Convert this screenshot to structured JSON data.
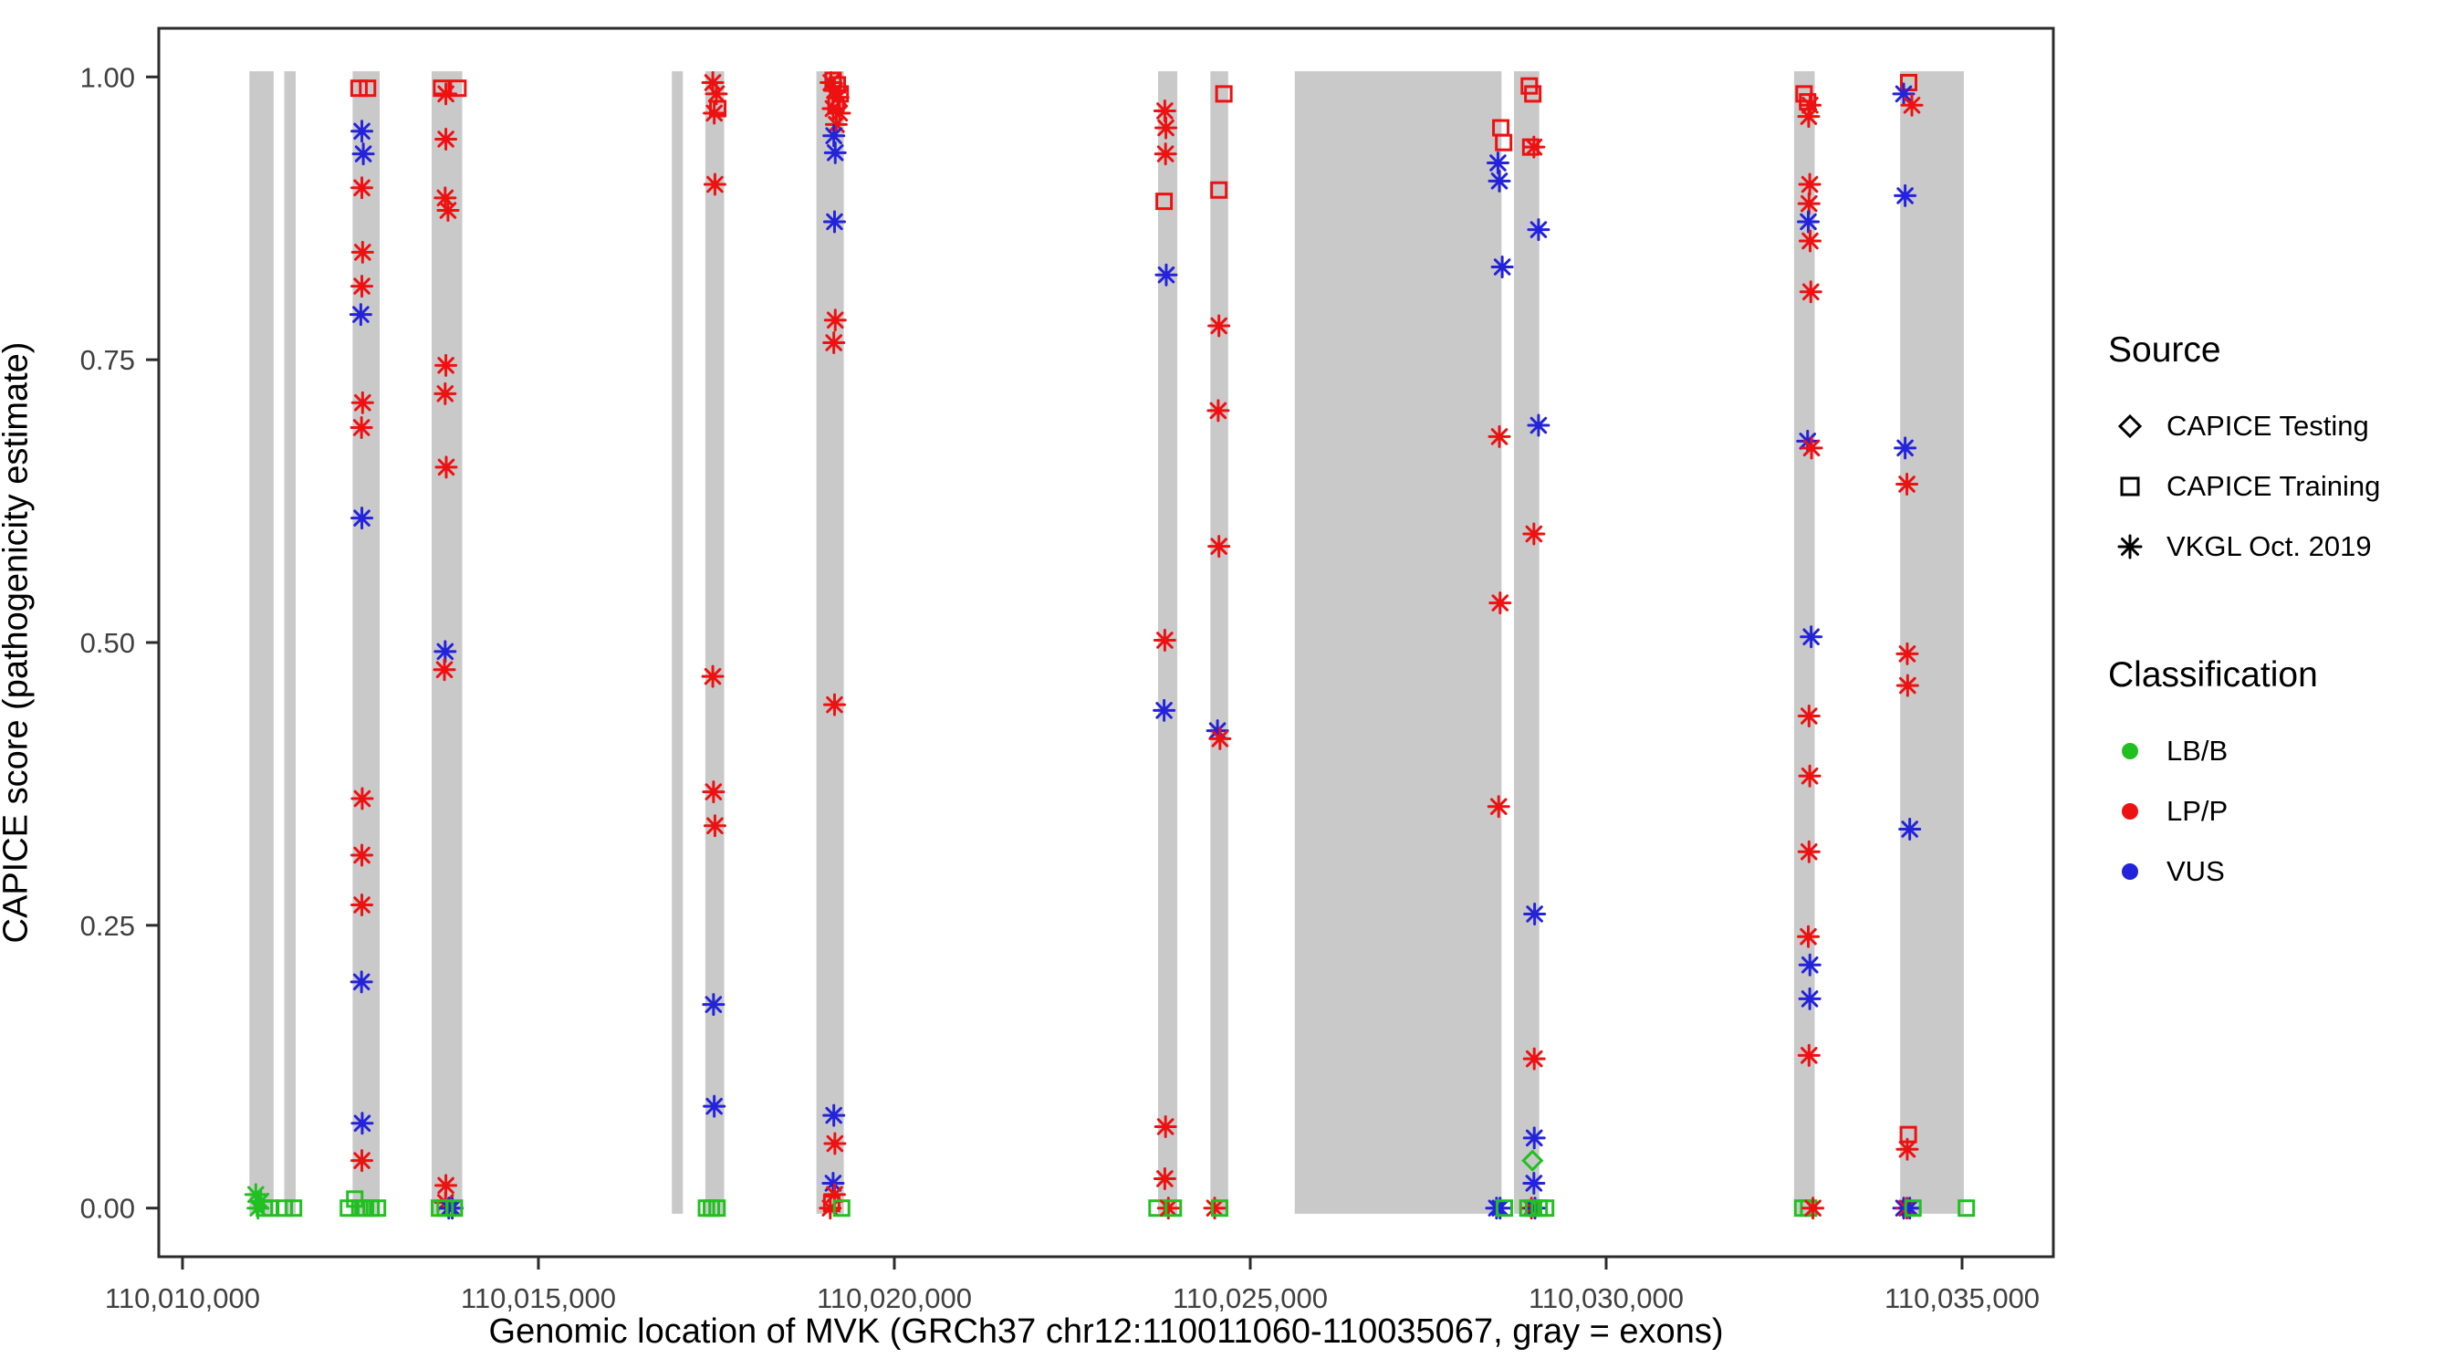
{
  "legend": {
    "source_title": "Source",
    "source_items": [
      {
        "label": "CAPICE Testing",
        "marker": "diamond"
      },
      {
        "label": "CAPICE Training",
        "marker": "square"
      },
      {
        "label": "VKGL Oct. 2019",
        "marker": "asterisk"
      }
    ],
    "classification_title": "Classification",
    "classification_items": [
      {
        "label": "LB/B",
        "color": "#21c021"
      },
      {
        "label": "LP/P",
        "color": "#ee1111"
      },
      {
        "label": "VUS",
        "color": "#2323dc"
      }
    ]
  },
  "chart_data": {
    "type": "scatter",
    "title": "",
    "xlabel": "Genomic location of MVK (GRCh37 chr12:110011060-110035067, gray = exons)",
    "ylabel": "CAPICE score (pathogenicity estimate)",
    "xlim": [
      110009667,
      110036282
    ],
    "ylim": [
      -0.043,
      1.043
    ],
    "grid": false,
    "legend_position": "right",
    "x_ticks": [
      {
        "value": 110010000,
        "label": "110,010,000"
      },
      {
        "value": 110015000,
        "label": "110,015,000"
      },
      {
        "value": 110020000,
        "label": "110,020,000"
      },
      {
        "value": 110025000,
        "label": "110,025,000"
      },
      {
        "value": 110030000,
        "label": "110,030,000"
      },
      {
        "value": 110035000,
        "label": "110,035,000"
      }
    ],
    "y_ticks": [
      {
        "value": 0.0,
        "label": "0.00"
      },
      {
        "value": 0.25,
        "label": "0.25"
      },
      {
        "value": 0.5,
        "label": "0.50"
      },
      {
        "value": 0.75,
        "label": "0.75"
      },
      {
        "value": 1.0,
        "label": "1.00"
      }
    ],
    "exon_color": "#c9c9c9",
    "exons": [
      [
        110010940,
        110011280
      ],
      [
        110011430,
        110011590
      ],
      [
        110012390,
        110012770
      ],
      [
        110013500,
        110013930
      ],
      [
        110016875,
        110017030
      ],
      [
        110017345,
        110017610
      ],
      [
        110018905,
        110019290
      ],
      [
        110023705,
        110023975
      ],
      [
        110024440,
        110024690
      ],
      [
        110025625,
        110028530
      ],
      [
        110028705,
        110029060
      ],
      [
        110032640,
        110032930
      ],
      [
        110034130,
        110035025
      ]
    ],
    "marker_codes": {
      "d": "CAPICE Testing (open diamond)",
      "s": "CAPICE Training (open square)",
      "a": "VKGL Oct. 2019 (asterisk)"
    },
    "class_codes": {
      "g": "LB/B",
      "r": "LP/P",
      "b": "VUS"
    },
    "class_colors": {
      "g": "#21c021",
      "r": "#ee1111",
      "b": "#2323dc"
    },
    "points": [
      [
        110011030,
        0.012,
        "a",
        "g"
      ],
      [
        110011100,
        0.006,
        "a",
        "g"
      ],
      [
        110011060,
        0.0,
        "a",
        "g"
      ],
      [
        110011150,
        0.0,
        "s",
        "g"
      ],
      [
        110011240,
        0.0,
        "s",
        "g"
      ],
      [
        110011430,
        0.0,
        "s",
        "g"
      ],
      [
        110011560,
        0.0,
        "s",
        "g"
      ],
      [
        110012480,
        0.99,
        "s",
        "r"
      ],
      [
        110012600,
        0.99,
        "s",
        "r"
      ],
      [
        110012520,
        0.952,
        "a",
        "b"
      ],
      [
        110012540,
        0.932,
        "a",
        "b"
      ],
      [
        110012520,
        0.902,
        "a",
        "r"
      ],
      [
        110012530,
        0.845,
        "a",
        "r"
      ],
      [
        110012520,
        0.815,
        "a",
        "r"
      ],
      [
        110012505,
        0.79,
        "a",
        "b"
      ],
      [
        110012530,
        0.712,
        "a",
        "r"
      ],
      [
        110012515,
        0.69,
        "a",
        "r"
      ],
      [
        110012520,
        0.61,
        "a",
        "b"
      ],
      [
        110012525,
        0.362,
        "a",
        "r"
      ],
      [
        110012520,
        0.312,
        "a",
        "r"
      ],
      [
        110012520,
        0.268,
        "a",
        "r"
      ],
      [
        110012515,
        0.2,
        "a",
        "b"
      ],
      [
        110012525,
        0.075,
        "a",
        "b"
      ],
      [
        110012520,
        0.042,
        "a",
        "r"
      ],
      [
        110012330,
        0.0,
        "s",
        "g"
      ],
      [
        110012420,
        0.008,
        "s",
        "g"
      ],
      [
        110012490,
        0.0,
        "s",
        "g"
      ],
      [
        110012570,
        0.0,
        "s",
        "g"
      ],
      [
        110012650,
        0.0,
        "s",
        "g"
      ],
      [
        110012740,
        0.0,
        "s",
        "g"
      ],
      [
        110013640,
        0.99,
        "s",
        "r"
      ],
      [
        110013870,
        0.99,
        "s",
        "r"
      ],
      [
        110013700,
        0.985,
        "a",
        "r"
      ],
      [
        110013700,
        0.945,
        "a",
        "r"
      ],
      [
        110013690,
        0.893,
        "a",
        "r"
      ],
      [
        110013730,
        0.882,
        "a",
        "r"
      ],
      [
        110013700,
        0.745,
        "a",
        "r"
      ],
      [
        110013690,
        0.72,
        "a",
        "r"
      ],
      [
        110013705,
        0.655,
        "a",
        "r"
      ],
      [
        110013690,
        0.492,
        "a",
        "b"
      ],
      [
        110013680,
        0.476,
        "a",
        "r"
      ],
      [
        110013700,
        0.02,
        "a",
        "r"
      ],
      [
        110013695,
        0.005,
        "a",
        "r"
      ],
      [
        110013740,
        0.0,
        "a",
        "b"
      ],
      [
        110013790,
        0.0,
        "a",
        "b"
      ],
      [
        110013610,
        0.0,
        "s",
        "g"
      ],
      [
        110013690,
        0.0,
        "s",
        "g"
      ],
      [
        110013820,
        0.0,
        "s",
        "g"
      ],
      [
        110017450,
        0.995,
        "a",
        "r"
      ],
      [
        110017500,
        0.985,
        "a",
        "r"
      ],
      [
        110017470,
        0.968,
        "a",
        "r"
      ],
      [
        110017520,
        0.972,
        "s",
        "r"
      ],
      [
        110017480,
        0.905,
        "a",
        "r"
      ],
      [
        110017450,
        0.47,
        "a",
        "r"
      ],
      [
        110017460,
        0.368,
        "a",
        "r"
      ],
      [
        110017480,
        0.338,
        "a",
        "r"
      ],
      [
        110017460,
        0.18,
        "a",
        "b"
      ],
      [
        110017470,
        0.09,
        "a",
        "b"
      ],
      [
        110017360,
        0.0,
        "s",
        "g"
      ],
      [
        110017430,
        0.0,
        "s",
        "g"
      ],
      [
        110017510,
        0.0,
        "s",
        "g"
      ],
      [
        110019140,
        0.997,
        "s",
        "r"
      ],
      [
        110019200,
        0.993,
        "s",
        "r"
      ],
      [
        110019240,
        0.985,
        "s",
        "r"
      ],
      [
        110019180,
        0.975,
        "s",
        "r"
      ],
      [
        110019110,
        0.995,
        "a",
        "r"
      ],
      [
        110019160,
        0.988,
        "a",
        "r"
      ],
      [
        110019210,
        0.982,
        "a",
        "r"
      ],
      [
        110019140,
        0.972,
        "a",
        "r"
      ],
      [
        110019230,
        0.968,
        "a",
        "r"
      ],
      [
        110019185,
        0.958,
        "a",
        "r"
      ],
      [
        110019150,
        0.948,
        "a",
        "b"
      ],
      [
        110019170,
        0.933,
        "a",
        "b"
      ],
      [
        110019160,
        0.872,
        "a",
        "b"
      ],
      [
        110019170,
        0.785,
        "a",
        "r"
      ],
      [
        110019150,
        0.765,
        "a",
        "r"
      ],
      [
        110019160,
        0.445,
        "a",
        "r"
      ],
      [
        110019150,
        0.082,
        "a",
        "b"
      ],
      [
        110019165,
        0.057,
        "a",
        "r"
      ],
      [
        110019140,
        0.022,
        "a",
        "b"
      ],
      [
        110019160,
        0.012,
        "a",
        "r"
      ],
      [
        110019120,
        0.004,
        "s",
        "r"
      ],
      [
        110019100,
        0.0,
        "a",
        "r"
      ],
      [
        110019260,
        0.0,
        "s",
        "g"
      ],
      [
        110023800,
        0.97,
        "a",
        "r"
      ],
      [
        110023815,
        0.955,
        "a",
        "r"
      ],
      [
        110023810,
        0.932,
        "a",
        "r"
      ],
      [
        110023790,
        0.89,
        "s",
        "r"
      ],
      [
        110023820,
        0.825,
        "a",
        "b"
      ],
      [
        110023800,
        0.502,
        "a",
        "r"
      ],
      [
        110023790,
        0.44,
        "a",
        "b"
      ],
      [
        110023810,
        0.072,
        "a",
        "r"
      ],
      [
        110023800,
        0.026,
        "a",
        "r"
      ],
      [
        110023690,
        0.0,
        "s",
        "g"
      ],
      [
        110023850,
        0.0,
        "a",
        "r"
      ],
      [
        110023920,
        0.0,
        "s",
        "g"
      ],
      [
        110024630,
        0.985,
        "s",
        "r"
      ],
      [
        110024560,
        0.9,
        "s",
        "r"
      ],
      [
        110024560,
        0.78,
        "a",
        "r"
      ],
      [
        110024550,
        0.705,
        "a",
        "r"
      ],
      [
        110024560,
        0.585,
        "a",
        "r"
      ],
      [
        110024540,
        0.422,
        "a",
        "b"
      ],
      [
        110024575,
        0.415,
        "a",
        "r"
      ],
      [
        110024500,
        0.0,
        "a",
        "r"
      ],
      [
        110024570,
        0.0,
        "s",
        "g"
      ],
      [
        110028520,
        0.955,
        "s",
        "r"
      ],
      [
        110028560,
        0.942,
        "s",
        "r"
      ],
      [
        110028480,
        0.924,
        "a",
        "b"
      ],
      [
        110028500,
        0.908,
        "a",
        "b"
      ],
      [
        110028540,
        0.832,
        "a",
        "b"
      ],
      [
        110028500,
        0.682,
        "a",
        "r"
      ],
      [
        110028510,
        0.535,
        "a",
        "r"
      ],
      [
        110028490,
        0.355,
        "a",
        "r"
      ],
      [
        110028460,
        0.0,
        "a",
        "b"
      ],
      [
        110028510,
        0.0,
        "a",
        "b"
      ],
      [
        110028570,
        0.0,
        "s",
        "g"
      ],
      [
        110028920,
        0.992,
        "s",
        "r"
      ],
      [
        110028970,
        0.985,
        "s",
        "r"
      ],
      [
        110028940,
        0.938,
        "s",
        "r"
      ],
      [
        110028985,
        0.938,
        "a",
        "r"
      ],
      [
        110029050,
        0.865,
        "a",
        "b"
      ],
      [
        110029050,
        0.692,
        "a",
        "b"
      ],
      [
        110028985,
        0.596,
        "a",
        "r"
      ],
      [
        110028995,
        0.26,
        "a",
        "b"
      ],
      [
        110028990,
        0.132,
        "a",
        "r"
      ],
      [
        110028990,
        0.062,
        "a",
        "b"
      ],
      [
        110028965,
        0.042,
        "d",
        "g"
      ],
      [
        110028985,
        0.022,
        "a",
        "b"
      ],
      [
        110028950,
        0.0,
        "a",
        "r"
      ],
      [
        110029000,
        0.0,
        "a",
        "b"
      ],
      [
        110028900,
        0.0,
        "s",
        "g"
      ],
      [
        110028980,
        0.0,
        "s",
        "g"
      ],
      [
        110029060,
        0.0,
        "s",
        "g"
      ],
      [
        110029150,
        0.0,
        "s",
        "g"
      ],
      [
        110032780,
        0.985,
        "s",
        "r"
      ],
      [
        110032830,
        0.978,
        "s",
        "r"
      ],
      [
        110032865,
        0.975,
        "a",
        "r"
      ],
      [
        110032845,
        0.965,
        "a",
        "r"
      ],
      [
        110032860,
        0.905,
        "a",
        "r"
      ],
      [
        110032850,
        0.888,
        "a",
        "r"
      ],
      [
        110032840,
        0.872,
        "a",
        "b"
      ],
      [
        110032865,
        0.855,
        "a",
        "r"
      ],
      [
        110032875,
        0.81,
        "a",
        "r"
      ],
      [
        110032830,
        0.678,
        "a",
        "b"
      ],
      [
        110032885,
        0.672,
        "a",
        "r"
      ],
      [
        110032880,
        0.505,
        "a",
        "b"
      ],
      [
        110032850,
        0.435,
        "a",
        "r"
      ],
      [
        110032860,
        0.382,
        "a",
        "r"
      ],
      [
        110032850,
        0.315,
        "a",
        "r"
      ],
      [
        110032840,
        0.24,
        "a",
        "r"
      ],
      [
        110032862,
        0.215,
        "a",
        "b"
      ],
      [
        110032860,
        0.185,
        "a",
        "b"
      ],
      [
        110032850,
        0.135,
        "a",
        "r"
      ],
      [
        110032760,
        0.0,
        "s",
        "g"
      ],
      [
        110032845,
        0.0,
        "s",
        "g"
      ],
      [
        110032905,
        0.0,
        "a",
        "r"
      ],
      [
        110034250,
        0.995,
        "s",
        "r"
      ],
      [
        110034180,
        0.985,
        "a",
        "b"
      ],
      [
        110034295,
        0.975,
        "a",
        "r"
      ],
      [
        110034200,
        0.895,
        "a",
        "b"
      ],
      [
        110034200,
        0.672,
        "a",
        "b"
      ],
      [
        110034225,
        0.64,
        "a",
        "r"
      ],
      [
        110034230,
        0.49,
        "a",
        "r"
      ],
      [
        110034235,
        0.462,
        "a",
        "r"
      ],
      [
        110034265,
        0.335,
        "a",
        "b"
      ],
      [
        110034245,
        0.065,
        "s",
        "r"
      ],
      [
        110034230,
        0.052,
        "a",
        "r"
      ],
      [
        110034180,
        0.0,
        "a",
        "b"
      ],
      [
        110034225,
        0.0,
        "a",
        "r"
      ],
      [
        110034265,
        0.0,
        "a",
        "b"
      ],
      [
        110034310,
        0.0,
        "s",
        "g"
      ],
      [
        110035060,
        0.0,
        "s",
        "g"
      ]
    ]
  }
}
